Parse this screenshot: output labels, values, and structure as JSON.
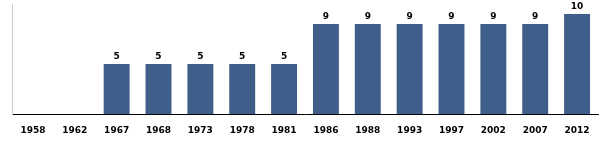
{
  "chart_data": {
    "type": "bar",
    "categories": [
      "1958",
      "1962",
      "1967",
      "1968",
      "1973",
      "1978",
      "1981",
      "1986",
      "1988",
      "1993",
      "1997",
      "2002",
      "2007",
      "2012"
    ],
    "values": [
      null,
      null,
      5,
      5,
      5,
      5,
      5,
      9,
      9,
      9,
      9,
      9,
      9,
      10
    ],
    "color": "#3f5f8a",
    "ylim": [
      0,
      11
    ],
    "grid": false,
    "data_labels": true,
    "tick_labels": "x"
  }
}
